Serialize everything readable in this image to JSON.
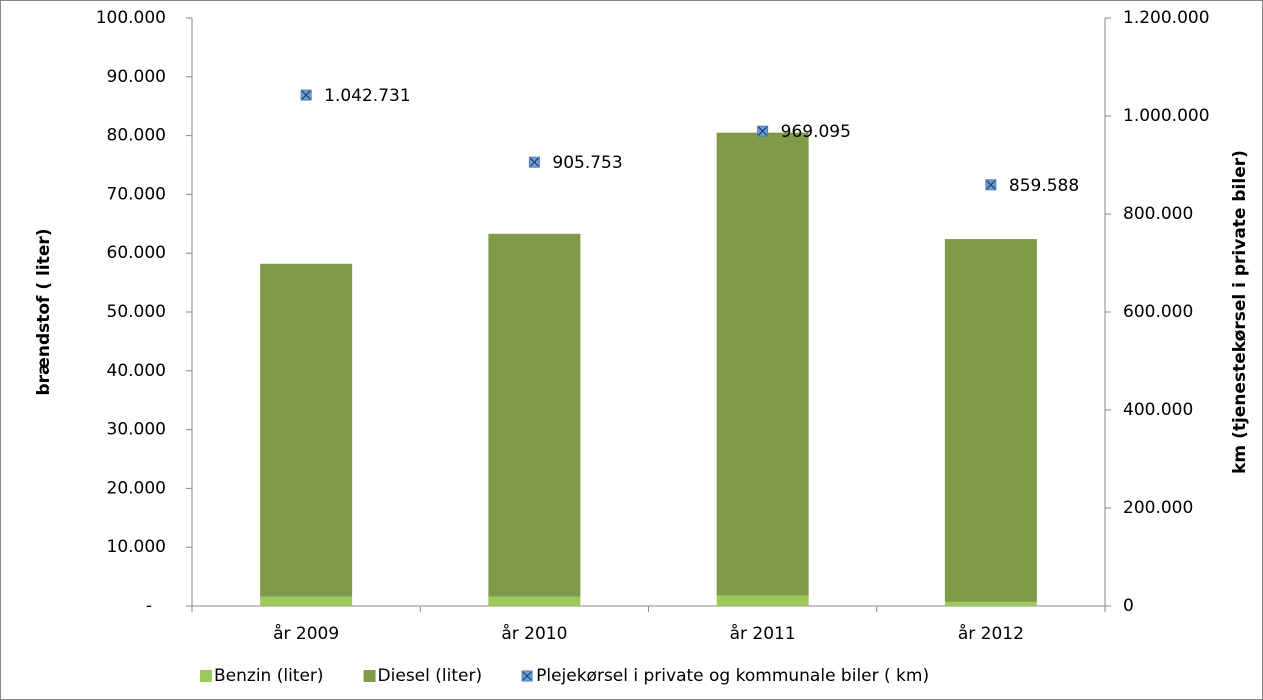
{
  "chart_data": {
    "type": "bar",
    "stacked": true,
    "categories": [
      "år 2009",
      "år 2010",
      "år 2011",
      "år 2012"
    ],
    "series": [
      {
        "name": "Benzin (liter)",
        "color": "#9bc95b",
        "values": [
          1600,
          1600,
          1800,
          700
        ]
      },
      {
        "name": "Diesel (liter)",
        "color": "#7f9b47",
        "values": [
          56600,
          61700,
          78700,
          61700
        ]
      },
      {
        "name": "Plejekørsel i private og kommunale biler ( km)",
        "type": "scatter",
        "axis": "y2",
        "color": "#6f9fd8",
        "values": [
          1042731,
          905753,
          969095,
          859588
        ],
        "value_labels": [
          "1.042.731",
          "905.753",
          "969.095",
          "859.588"
        ]
      }
    ],
    "ylabel": "brændstof ( liter)",
    "y2label": "km (tjenestekørsel  i  private biler)",
    "ylim": [
      0,
      100000
    ],
    "yticks": [
      {
        "value": 0,
        "label": "-"
      },
      {
        "value": 10000,
        "label": "10.000"
      },
      {
        "value": 20000,
        "label": "20.000"
      },
      {
        "value": 30000,
        "label": "30.000"
      },
      {
        "value": 40000,
        "label": "40.000"
      },
      {
        "value": 50000,
        "label": "50.000"
      },
      {
        "value": 60000,
        "label": "60.000"
      },
      {
        "value": 70000,
        "label": "70.000"
      },
      {
        "value": 80000,
        "label": "80.000"
      },
      {
        "value": 90000,
        "label": "90.000"
      },
      {
        "value": 100000,
        "label": "100.000"
      }
    ],
    "y2lim": [
      0,
      1200000
    ],
    "y2ticks": [
      0,
      {
        "value": 200000,
        "label": "200.000"
      },
      {
        "value": 400000,
        "label": "400.000"
      },
      {
        "value": 600000,
        "label": "600.000"
      },
      {
        "value": 800000,
        "label": "800.000"
      },
      {
        "value": 1000000,
        "label": "1.000.000"
      },
      {
        "value": 1200000,
        "label": "1.200.000"
      }
    ],
    "grid": false,
    "legend": "bottom"
  }
}
